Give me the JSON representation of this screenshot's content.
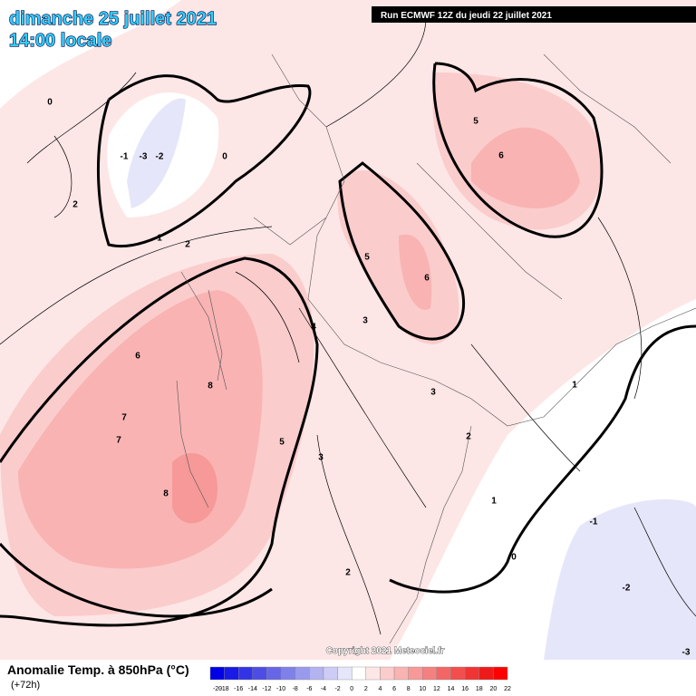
{
  "header": {
    "date": "dimanche 25 juillet 2021",
    "time": "14:00 locale",
    "run": "Run ECMWF 12Z du jeudi 22 juillet 2021"
  },
  "map": {
    "contour_labels": [
      0,
      -1,
      -3,
      -2,
      0,
      2,
      1,
      2,
      5,
      6,
      5,
      6,
      6,
      4,
      3,
      7,
      7,
      8,
      8,
      5,
      3,
      3,
      2,
      1,
      1,
      -1,
      0,
      2,
      -2,
      -3
    ],
    "copyright": "Copyright 2021 Meteociel.fr"
  },
  "legend": {
    "title": "Anomalie Temp. à 850hPa (°C)",
    "lead": "(+72h)",
    "ticks": [
      -20,
      -18,
      -16,
      -14,
      -12,
      -10,
      -8,
      -6,
      -4,
      -2,
      0,
      2,
      4,
      6,
      8,
      10,
      12,
      14,
      16,
      18,
      20,
      22
    ],
    "colors": [
      "#0000e6",
      "#1a1ae6",
      "#3333e6",
      "#4d4de6",
      "#6666e6",
      "#8080ea",
      "#9999ee",
      "#b3b3f2",
      "#ccccf6",
      "#e6e6fa",
      "#ffffff",
      "#fde6e6",
      "#fbcccc",
      "#f9b3b3",
      "#f79999",
      "#f58080",
      "#f36666",
      "#f34d4d",
      "#f03333",
      "#ee1a1a",
      "#ff0000"
    ]
  }
}
